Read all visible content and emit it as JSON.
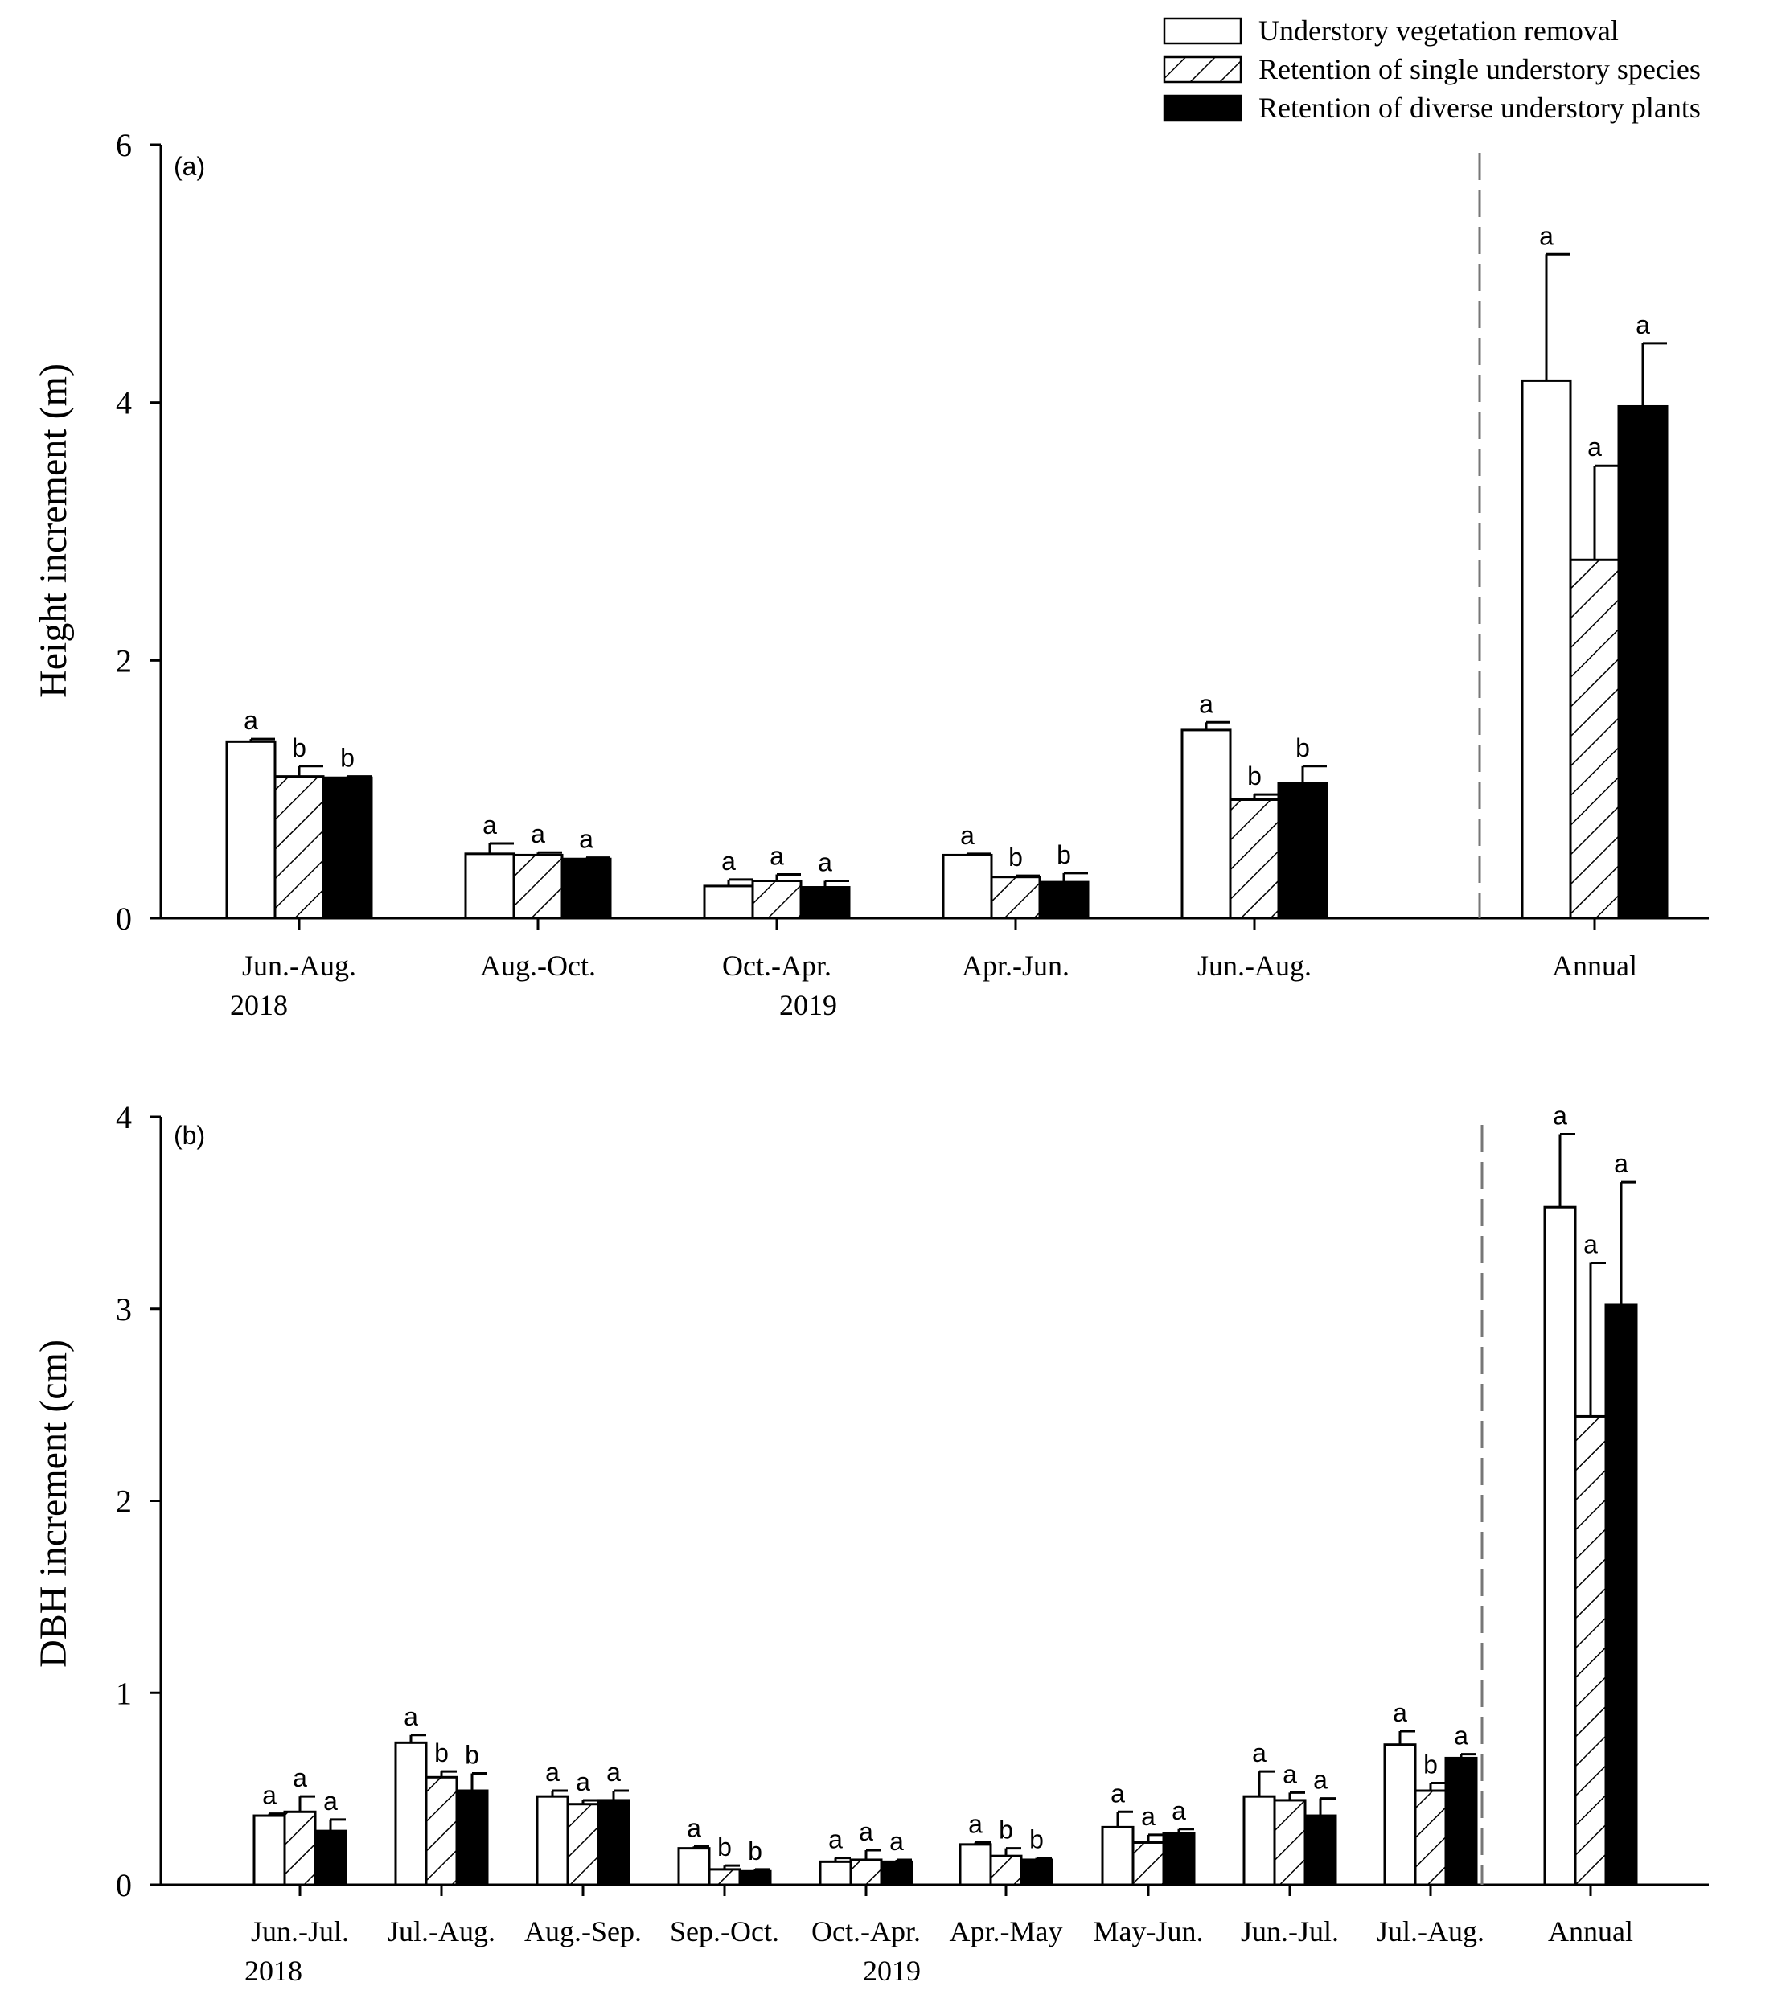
{
  "colors": {
    "removal": "#ffffff",
    "single_hatch": "#000000",
    "diverse": "#000000",
    "axis": "#000000",
    "divider": "#777777"
  },
  "legend": {
    "position": "top-right",
    "entries": [
      {
        "label": "Understory vegetation removal",
        "style": "open"
      },
      {
        "label": "Retention of single understory species",
        "style": "hatched"
      },
      {
        "label": "Retention of diverse understory plants",
        "style": "solid"
      }
    ]
  },
  "chart_data": [
    {
      "panel_label": "(a)",
      "type": "bar",
      "ylabel": "Height increment (m)",
      "xlabel": "",
      "ylim": [
        0,
        6
      ],
      "yticks": [
        "0",
        "2",
        "4",
        "6"
      ],
      "grid": false,
      "categories": [
        "Jun.-Aug.",
        "Aug.-Oct.",
        "Oct.-Apr.",
        "Apr.-Jun.",
        "Jun.-Aug.",
        "Annual"
      ],
      "year_labels": [
        {
          "text": "2018",
          "category_index": 0
        },
        {
          "text": "2019",
          "category_index": 2
        }
      ],
      "divider_before_category": 5,
      "series": [
        {
          "name": "Understory vegetation removal",
          "values": [
            1.37,
            0.5,
            0.25,
            0.49,
            1.46,
            4.17
          ],
          "errors": [
            0.02,
            0.08,
            0.05,
            0.01,
            0.06,
            0.98
          ],
          "letters": [
            "a",
            "a",
            "a",
            "a",
            "a",
            "a"
          ]
        },
        {
          "name": "Retention of single understory species",
          "values": [
            1.1,
            0.49,
            0.29,
            0.32,
            0.92,
            2.78
          ],
          "errors": [
            0.08,
            0.02,
            0.05,
            0.01,
            0.04,
            0.73
          ],
          "letters": [
            "b",
            "a",
            "a",
            "b",
            "b",
            "a"
          ]
        },
        {
          "name": "Retention of diverse understory plants",
          "values": [
            1.09,
            0.46,
            0.24,
            0.28,
            1.05,
            3.97
          ],
          "errors": [
            0.01,
            0.01,
            0.05,
            0.07,
            0.13,
            0.49
          ],
          "letters": [
            "b",
            "a",
            "a",
            "b",
            "b",
            "a"
          ]
        }
      ]
    },
    {
      "panel_label": "(b)",
      "type": "bar",
      "ylabel": "DBH increment (cm)",
      "xlabel": "",
      "ylim": [
        0,
        4
      ],
      "yticks": [
        "0",
        "1",
        "2",
        "3",
        "4"
      ],
      "grid": false,
      "categories": [
        "Jun.-Jul.",
        "Jul.-Aug.",
        "Aug.-Sep.",
        "Sep.-Oct.",
        "Oct.-Apr.",
        "Apr.-May",
        "May-Jun.",
        "Jun.-Jul.",
        "Jul.-Aug.",
        "Annual"
      ],
      "year_labels": [
        {
          "text": "2018",
          "category_index": 0
        },
        {
          "text": "2019",
          "category_index": 4
        }
      ],
      "divider_before_category": 9,
      "series": [
        {
          "name": "Understory vegetation removal",
          "values": [
            0.36,
            0.74,
            0.46,
            0.19,
            0.12,
            0.21,
            0.3,
            0.46,
            0.73,
            3.53
          ],
          "errors": [
            0.01,
            0.04,
            0.03,
            0.01,
            0.02,
            0.01,
            0.08,
            0.13,
            0.07,
            0.38
          ],
          "letters": [
            "a",
            "a",
            "a",
            "a",
            "a",
            "a",
            "a",
            "a",
            "a",
            "a"
          ]
        },
        {
          "name": "Retention of single understory species",
          "values": [
            0.38,
            0.56,
            0.42,
            0.08,
            0.13,
            0.15,
            0.22,
            0.44,
            0.49,
            2.44
          ],
          "errors": [
            0.08,
            0.03,
            0.02,
            0.02,
            0.05,
            0.04,
            0.04,
            0.04,
            0.04,
            0.8
          ],
          "letters": [
            "a",
            "b",
            "a",
            "b",
            "a",
            "b",
            "a",
            "a",
            "b",
            "a"
          ]
        },
        {
          "name": "Retention of diverse understory plants",
          "values": [
            0.28,
            0.49,
            0.44,
            0.07,
            0.12,
            0.13,
            0.27,
            0.36,
            0.66,
            3.02
          ],
          "errors": [
            0.06,
            0.09,
            0.05,
            0.01,
            0.01,
            0.01,
            0.02,
            0.09,
            0.02,
            0.64
          ],
          "letters": [
            "a",
            "b",
            "a",
            "b",
            "a",
            "b",
            "a",
            "a",
            "a",
            "a"
          ]
        }
      ]
    }
  ]
}
